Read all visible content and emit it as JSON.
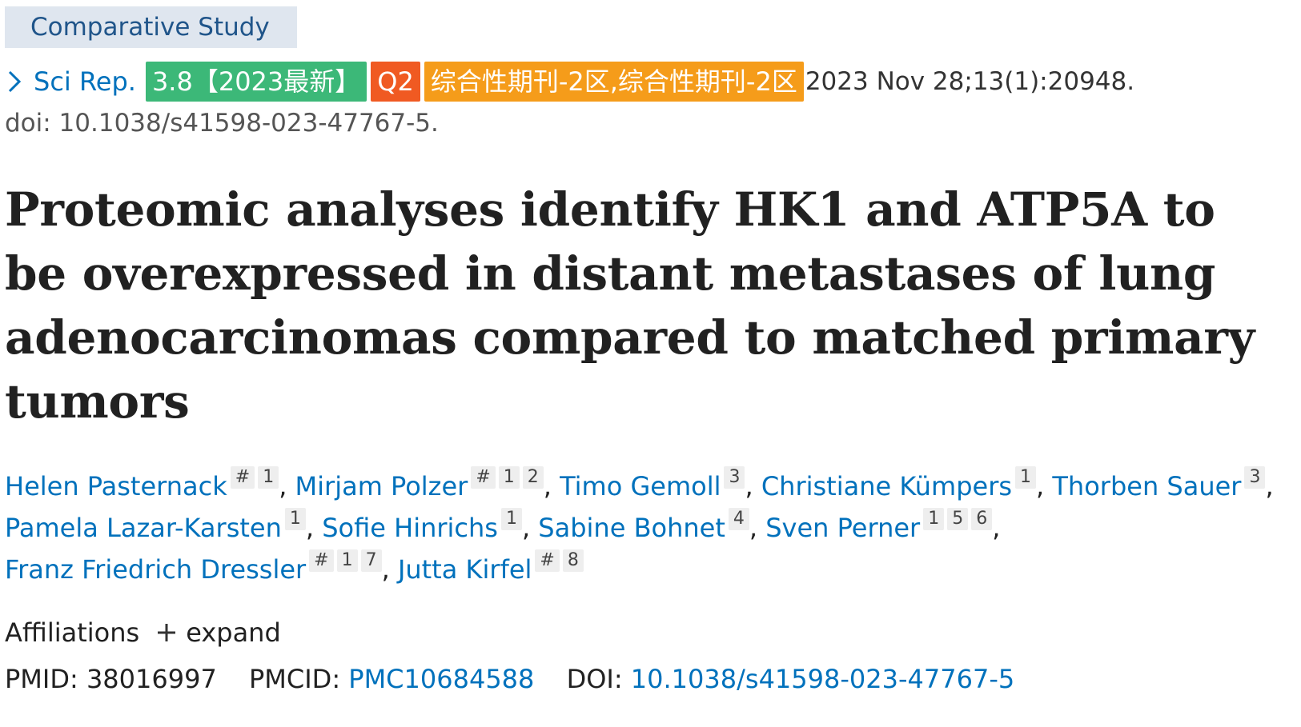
{
  "publication_type": "Comparative Study",
  "citation": {
    "journal": "Sci Rep.",
    "impact_badge": "3.8【2023最新】",
    "quartile_badge": "Q2",
    "zone_badge": "综合性期刊-2区,综合性期刊-2区",
    "details": "2023 Nov 28;13(1):20948.",
    "doi_line": "doi: 10.1038/s41598-023-47767-5."
  },
  "title": "Proteomic analyses identify HK1 and ATP5A to be overexpressed in distant metastases of lung adenocarcinomas compared to matched primary tumors",
  "authors": [
    {
      "name": "Helen Pasternack",
      "sups": [
        "#",
        "1"
      ]
    },
    {
      "name": "Mirjam Polzer",
      "sups": [
        "#",
        "1",
        "2"
      ]
    },
    {
      "name": "Timo Gemoll",
      "sups": [
        "3"
      ]
    },
    {
      "name": "Christiane Kümpers",
      "sups": [
        "1"
      ]
    },
    {
      "name": "Thorben Sauer",
      "sups": [
        "3"
      ]
    },
    {
      "name": "Pamela Lazar-Karsten",
      "sups": [
        "1"
      ]
    },
    {
      "name": "Sofie Hinrichs",
      "sups": [
        "1"
      ]
    },
    {
      "name": "Sabine Bohnet",
      "sups": [
        "4"
      ]
    },
    {
      "name": "Sven Perner",
      "sups": [
        "1",
        "5",
        "6"
      ]
    },
    {
      "name": "Franz Friedrich Dressler",
      "sups": [
        "#",
        "1",
        "7"
      ]
    },
    {
      "name": "Jutta Kirfel",
      "sups": [
        "#",
        "8"
      ]
    }
  ],
  "affiliations": {
    "label": "Affiliations",
    "expand_label": "expand"
  },
  "identifiers": {
    "pmid_label": "PMID:",
    "pmid": "38016997",
    "pmcid_label": "PMCID:",
    "pmcid": "PMC10684588",
    "doi_label": "DOI:",
    "doi": "10.1038/s41598-023-47767-5"
  },
  "colors": {
    "link": "#0071bc",
    "if_badge": "#3cb878",
    "quartile_badge": "#f05a22",
    "zone_badge": "#f59c1a",
    "pub_type_bg": "#dfe6ef"
  }
}
